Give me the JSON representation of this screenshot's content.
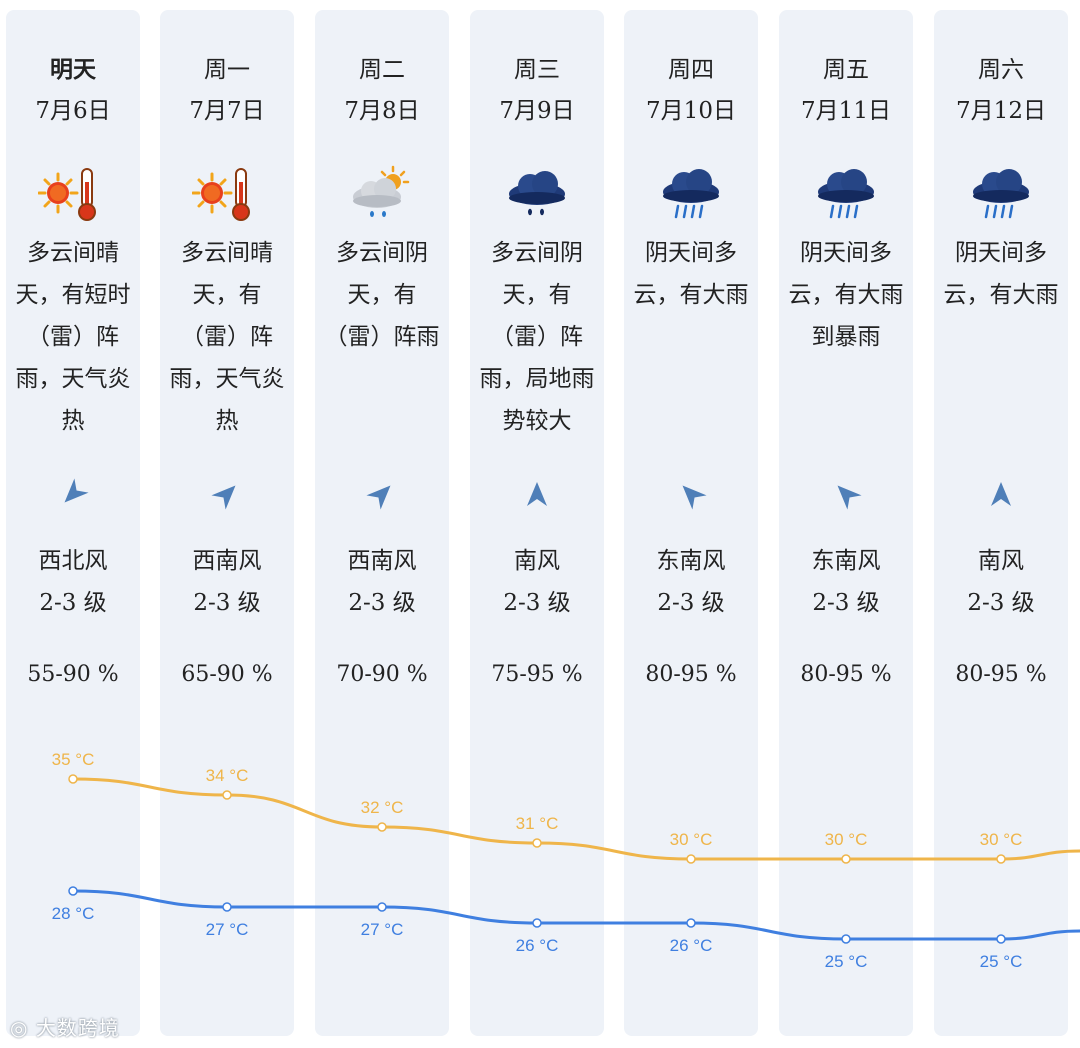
{
  "days": [
    {
      "label": "明天",
      "date": "7月6日",
      "icon": "sunny-hot-icon",
      "desc": "多云间晴天，有短时（雷）阵雨，天气炎热",
      "wind_dir": "西北风",
      "wind_level": "2-3 级",
      "wind_arrow_deg": 225,
      "humidity": "55-90 %",
      "high": 35,
      "high_label": "35 °C",
      "low": 28,
      "low_label": "28 °C"
    },
    {
      "label": "周一",
      "date": "7月7日",
      "icon": "sunny-hot-icon",
      "desc": "多云间晴天，有（雷）阵雨，天气炎热",
      "wind_dir": "西南风",
      "wind_level": "2-3 级",
      "wind_arrow_deg": 45,
      "humidity": "65-90 %",
      "high": 34,
      "high_label": "34 °C",
      "low": 27,
      "low_label": "27 °C"
    },
    {
      "label": "周二",
      "date": "7月8日",
      "icon": "cloudy-sun-rain-icon",
      "desc": "多云间阴天，有（雷）阵雨",
      "wind_dir": "西南风",
      "wind_level": "2-3 级",
      "wind_arrow_deg": 45,
      "humidity": "70-90 %",
      "high": 32,
      "high_label": "32 °C",
      "low": 27,
      "low_label": "27 °C"
    },
    {
      "label": "周三",
      "date": "7月9日",
      "icon": "dark-cloud-rain-icon",
      "desc": "多云间阴天，有（雷）阵雨，局地雨势较大",
      "wind_dir": "南风",
      "wind_level": "2-3 级",
      "wind_arrow_deg": 0,
      "humidity": "75-95 %",
      "high": 31,
      "high_label": "31 °C",
      "low": 26,
      "low_label": "26 °C"
    },
    {
      "label": "周四",
      "date": "7月10日",
      "icon": "heavy-rain-icon",
      "desc": "阴天间多云，有大雨",
      "wind_dir": "东南风",
      "wind_level": "2-3 级",
      "wind_arrow_deg": -45,
      "humidity": "80-95 %",
      "high": 30,
      "high_label": "30 °C",
      "low": 26,
      "low_label": "26 °C"
    },
    {
      "label": "周五",
      "date": "7月11日",
      "icon": "heavy-rain-icon",
      "desc": "阴天间多云，有大雨到暴雨",
      "wind_dir": "东南风",
      "wind_level": "2-3 级",
      "wind_arrow_deg": -45,
      "humidity": "80-95 %",
      "high": 30,
      "high_label": "30 °C",
      "low": 25,
      "low_label": "25 °C"
    },
    {
      "label": "周六",
      "date": "7月12日",
      "icon": "heavy-rain-icon",
      "desc": "阴天间多云，有大雨",
      "wind_dir": "南风",
      "wind_level": "2-3 级",
      "wind_arrow_deg": 0,
      "humidity": "80-95 %",
      "high": 30,
      "high_label": "30 °C",
      "low": 25,
      "low_label": "25 °C"
    }
  ],
  "colors": {
    "high_line": "#efb54a",
    "low_line": "#3f7fe0",
    "column_bg": "#eef2f8"
  },
  "watermark": "大数跨境",
  "chart_data": {
    "type": "line",
    "categories": [
      "7月6日",
      "7月7日",
      "7月8日",
      "7月9日",
      "7月10日",
      "7月11日",
      "7月12日"
    ],
    "series": [
      {
        "values": [
          35,
          34,
          32,
          31,
          30,
          30,
          30
        ]
      },
      {
        "values": [
          28,
          27,
          27,
          26,
          26,
          25,
          25
        ]
      }
    ]
  }
}
